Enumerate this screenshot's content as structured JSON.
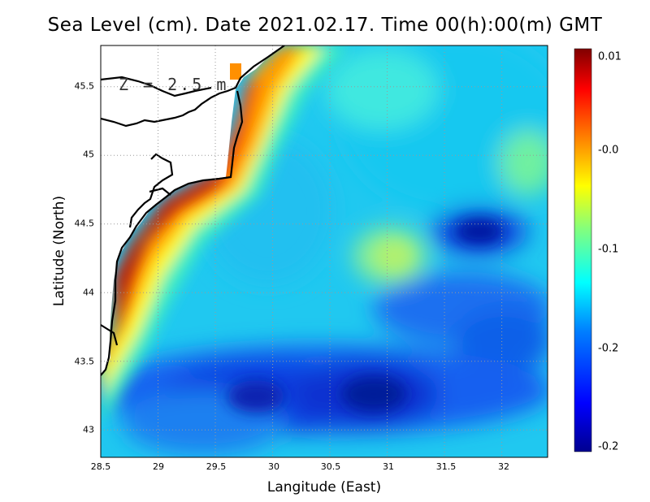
{
  "title": "Sea Level (cm). Date 2021.02.17. Time 00(h):00(m) GMT",
  "depth_label": "Z = 2.5 m",
  "x_axis": {
    "label": "Langitude (East)",
    "ticks": [
      "28.5",
      "29",
      "29.5",
      "30",
      "30.5",
      "31",
      "31.5",
      "32"
    ],
    "range": [
      28.5,
      32.4
    ]
  },
  "y_axis": {
    "label": "Latitude (North)",
    "ticks": [
      "43",
      "43.5",
      "44",
      "44.5",
      "45",
      "45.5"
    ],
    "range": [
      42.8,
      45.8
    ]
  },
  "colorbar": {
    "ticks": [
      "0.01",
      "-0.0",
      "-0.1",
      "-0.2",
      "-0.2"
    ],
    "colors": [
      "#00008f",
      "#0000ff",
      "#0080ff",
      "#00ffff",
      "#80ff80",
      "#ffff00",
      "#ff8000",
      "#ff0000",
      "#800000"
    ]
  },
  "map": {
    "grid": true,
    "grid_style": "dotted",
    "land_color": "#ffffff",
    "coastline_color": "#000000"
  }
}
